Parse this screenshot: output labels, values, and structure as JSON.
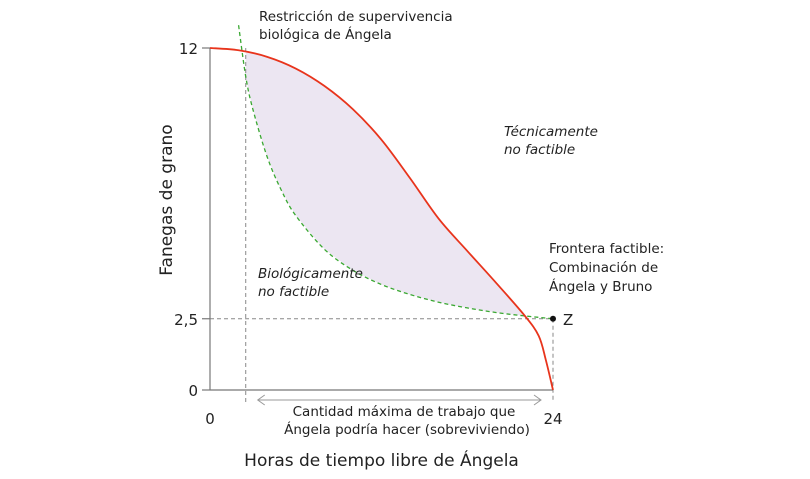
{
  "chart_data": {
    "type": "line",
    "xlabel": "Horas de tiempo libre de Ángela",
    "ylabel": "Fanegas de grano",
    "xlim": [
      0,
      24
    ],
    "ylim": [
      0,
      12
    ],
    "x_ticks": [
      "0",
      "24"
    ],
    "y_ticks": [
      "0",
      "2,5",
      "12"
    ],
    "series": [
      {
        "name": "Frontera factible: Combinación de Ángela y Bruno",
        "style": "solid",
        "color": "#e8341c",
        "x": [
          0,
          2,
          4,
          6,
          8,
          10,
          12,
          14,
          16,
          18,
          20,
          22,
          23,
          23.5,
          24
        ],
        "y": [
          12,
          11.92,
          11.69,
          11.28,
          10.67,
          9.85,
          8.78,
          7.43,
          6.01,
          4.88,
          3.77,
          2.62,
          1.9,
          1.05,
          0
        ]
      },
      {
        "name": "Restricción de supervivencia biológica de Ángela",
        "style": "dashed",
        "color": "#3aa832",
        "x": [
          2.0,
          2.5,
          3,
          4,
          5,
          6,
          8,
          10,
          12,
          14,
          16,
          18,
          20,
          22,
          24
        ],
        "y": [
          12.8,
          11.0,
          9.85,
          8.18,
          7.0,
          6.12,
          4.94,
          4.2,
          3.7,
          3.35,
          3.08,
          2.88,
          2.72,
          2.6,
          2.5
        ]
      }
    ],
    "shaded_region": {
      "between": [
        "Restricción de supervivencia biológica de Ángela",
        "Frontera factible: Combinación de Ángela y Bruno"
      ],
      "color": "#ece6f2"
    },
    "reference_lines": [
      {
        "orientation": "horizontal",
        "y": 2.5
      },
      {
        "orientation": "vertical",
        "x": 24
      },
      {
        "orientation": "vertical",
        "x": 2.5
      }
    ],
    "point": {
      "label": "Z",
      "x": 24,
      "y": 2.5
    },
    "annotations": {
      "survival_line1": "Restricción de supervivencia",
      "survival_line2": "biológica de Ángela",
      "tech_line1": "Técnicamente",
      "tech_line2": "no factible",
      "bio_line1": "Biológicamente",
      "bio_line2": "no factible",
      "frontier_line1": "Frontera factible:",
      "frontier_line2": "Combinación de",
      "frontier_line3": "Ángela y Bruno",
      "range_line1": "Cantidad máxima de trabajo que",
      "range_line2": "Ángela podría hacer (sobreviviendo)"
    },
    "range_arrow": {
      "from_x": 2.5,
      "to_x": 24
    }
  }
}
